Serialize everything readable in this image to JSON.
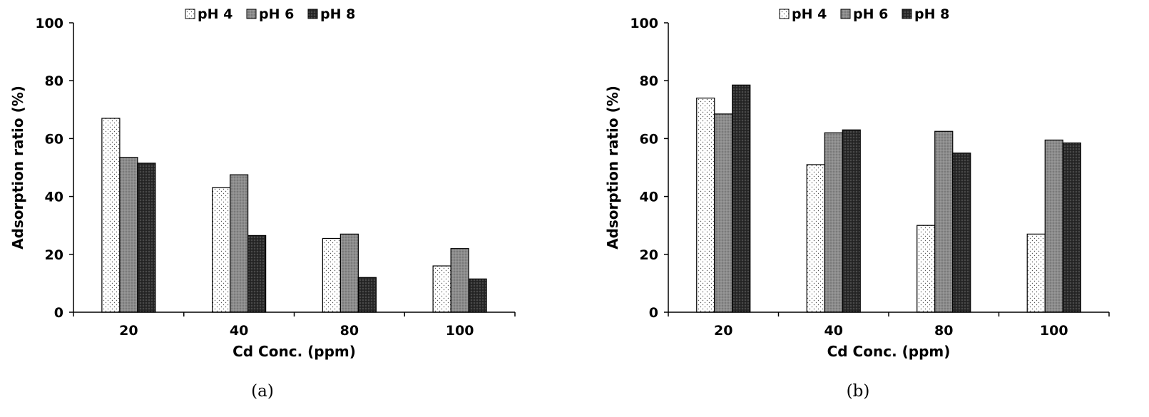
{
  "chart_data": [
    {
      "type": "bar",
      "caption": "(a)",
      "categories": [
        "20",
        "40",
        "80",
        "100"
      ],
      "series": [
        {
          "name": "pH 4",
          "values": [
            67,
            43,
            25.5,
            16
          ]
        },
        {
          "name": "pH 6",
          "values": [
            53.5,
            47.5,
            27,
            22
          ]
        },
        {
          "name": "pH 8",
          "values": [
            51.5,
            26.5,
            12,
            11.5
          ]
        }
      ],
      "title": "",
      "xlabel": "Cd Conc. (ppm)",
      "ylabel": "Adsorption ratio (%)",
      "ylim": [
        0,
        100
      ],
      "yticks": [
        "0",
        "20",
        "40",
        "60",
        "80",
        "100"
      ],
      "grid": false,
      "legend_position": "top-center"
    },
    {
      "type": "bar",
      "caption": "(b)",
      "categories": [
        "20",
        "40",
        "80",
        "100"
      ],
      "series": [
        {
          "name": "pH 4",
          "values": [
            74,
            51,
            30,
            27
          ]
        },
        {
          "name": "pH 6",
          "values": [
            68.5,
            62,
            62.5,
            59.5
          ]
        },
        {
          "name": "pH 8",
          "values": [
            78.5,
            63,
            55,
            58.5
          ]
        }
      ],
      "title": "",
      "xlabel": "Cd Conc. (ppm)",
      "ylabel": "Adsorption ratio (%)",
      "ylim": [
        0,
        100
      ],
      "yticks": [
        "0",
        "20",
        "40",
        "60",
        "80",
        "100"
      ],
      "grid": false,
      "legend_position": "top-center"
    }
  ]
}
